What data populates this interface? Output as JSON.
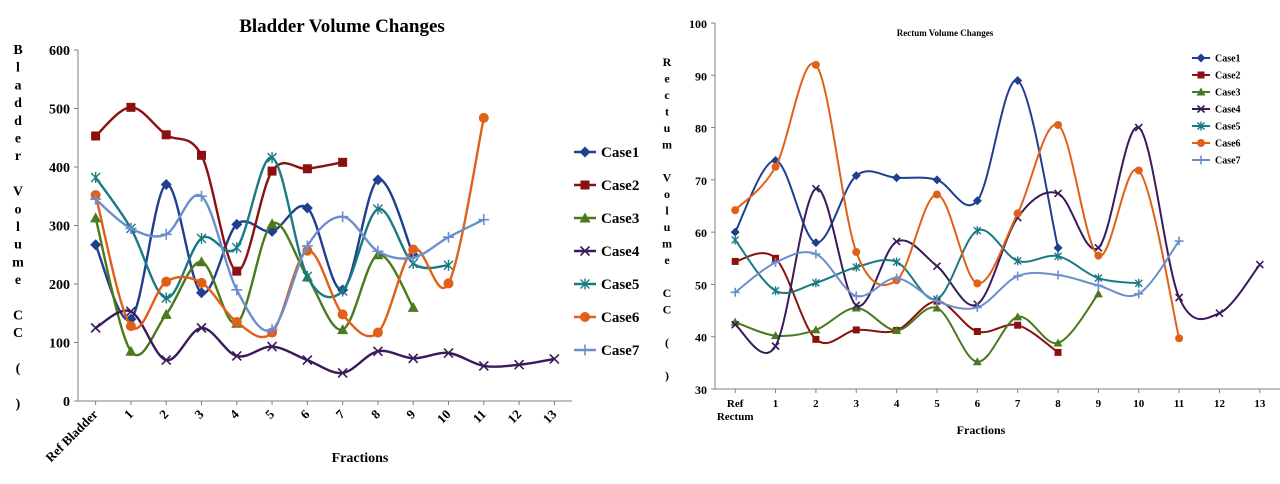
{
  "chart_data": [
    {
      "type": "line",
      "title": "Bladder Volume Changes",
      "xlabel": "Fractions",
      "ylabel": "Bladder Volume CC ( )",
      "ylim": [
        0,
        600
      ],
      "yticks": [
        0,
        100,
        200,
        300,
        400,
        500,
        600
      ],
      "grid": false,
      "legend_position": "right",
      "categories": [
        "Ref Bladder",
        "1",
        "2",
        "3",
        "4",
        "5",
        "6",
        "7",
        "8",
        "9",
        "10",
        "11",
        "12",
        "13"
      ],
      "series": [
        {
          "name": "Case1",
          "color": "#1f3f8f",
          "marker": "diamond",
          "values": [
            267,
            140,
            370,
            185,
            302,
            290,
            330,
            190,
            378,
            250,
            null,
            null,
            null,
            null
          ]
        },
        {
          "name": "Case2",
          "color": "#8b1010",
          "marker": "square",
          "values": [
            453,
            502,
            455,
            420,
            222,
            393,
            397,
            408,
            null,
            null,
            null,
            null,
            null,
            null
          ]
        },
        {
          "name": "Case3",
          "color": "#4a7a1c",
          "marker": "triangle",
          "values": [
            313,
            85,
            148,
            238,
            133,
            303,
            212,
            122,
            250,
            160,
            null,
            null,
            null,
            null
          ]
        },
        {
          "name": "Case4",
          "color": "#3a1a5a",
          "marker": "x",
          "values": [
            125,
            153,
            70,
            125,
            77,
            93,
            70,
            48,
            85,
            73,
            82,
            60,
            62,
            72
          ]
        },
        {
          "name": "Case5",
          "color": "#1a7a84",
          "marker": "asterisk",
          "values": [
            382,
            295,
            176,
            278,
            262,
            416,
            213,
            188,
            328,
            235,
            232,
            null,
            null,
            null
          ]
        },
        {
          "name": "Case6",
          "color": "#e0601a",
          "marker": "circle",
          "values": [
            352,
            128,
            204,
            202,
            135,
            117,
            257,
            148,
            117,
            259,
            201,
            484,
            null,
            null
          ]
        },
        {
          "name": "Case7",
          "color": "#6b8fcc",
          "marker": "plus",
          "values": [
            345,
            295,
            285,
            350,
            190,
            122,
            265,
            315,
            256,
            245,
            280,
            310,
            null,
            null
          ]
        }
      ]
    },
    {
      "type": "line",
      "title": "Rectum Volume Changes",
      "xlabel": "Fractions",
      "ylabel": "Rectum Volume CC ( )",
      "ylim": [
        30,
        100
      ],
      "yticks": [
        30,
        40,
        50,
        60,
        70,
        80,
        90,
        100
      ],
      "grid": false,
      "legend_position": "top-right",
      "categories": [
        "Ref Rectum",
        "1",
        "2",
        "3",
        "4",
        "5",
        "6",
        "7",
        "8",
        "9",
        "10",
        "11",
        "12",
        "13"
      ],
      "series": [
        {
          "name": "Case1",
          "color": "#1f3f8f",
          "marker": "diamond",
          "values": [
            60,
            73.7,
            58,
            70.8,
            70.4,
            70,
            66,
            89,
            57,
            null,
            null,
            null,
            null,
            null
          ]
        },
        {
          "name": "Case2",
          "color": "#8b1010",
          "marker": "square",
          "values": [
            54.4,
            55,
            39.5,
            41.3,
            41.2,
            46.8,
            41,
            42.2,
            37,
            null,
            null,
            null,
            null,
            null
          ]
        },
        {
          "name": "Case3",
          "color": "#4a7a1c",
          "marker": "triangle",
          "values": [
            42.8,
            40.2,
            41.3,
            45.5,
            41.2,
            45.5,
            35.2,
            43.8,
            38.8,
            48.2,
            null,
            null,
            null,
            null
          ]
        },
        {
          "name": "Case4",
          "color": "#3a1a5a",
          "marker": "x",
          "values": [
            42.3,
            38.2,
            68.3,
            46,
            58.2,
            53.5,
            46.2,
            62.8,
            67.4,
            57,
            80,
            47.5,
            44.5,
            53.8
          ]
        },
        {
          "name": "Case5",
          "color": "#1a7a84",
          "marker": "asterisk",
          "values": [
            58.5,
            48.8,
            50.3,
            53.3,
            54.3,
            47.2,
            60.3,
            54.5,
            55.4,
            51.2,
            50.2,
            null,
            null,
            null
          ]
        },
        {
          "name": "Case6",
          "color": "#e0601a",
          "marker": "circle",
          "values": [
            64.2,
            72.5,
            92,
            56.2,
            50.8,
            67.2,
            50.2,
            63.6,
            80.5,
            55.5,
            71.8,
            39.7,
            null,
            null
          ]
        },
        {
          "name": "Case7",
          "color": "#6b8fcc",
          "marker": "plus",
          "values": [
            48.5,
            54.2,
            55.8,
            47.8,
            51.2,
            46.8,
            45.6,
            51.6,
            51.8,
            49.8,
            48.2,
            58.3,
            null,
            null
          ]
        }
      ]
    }
  ]
}
